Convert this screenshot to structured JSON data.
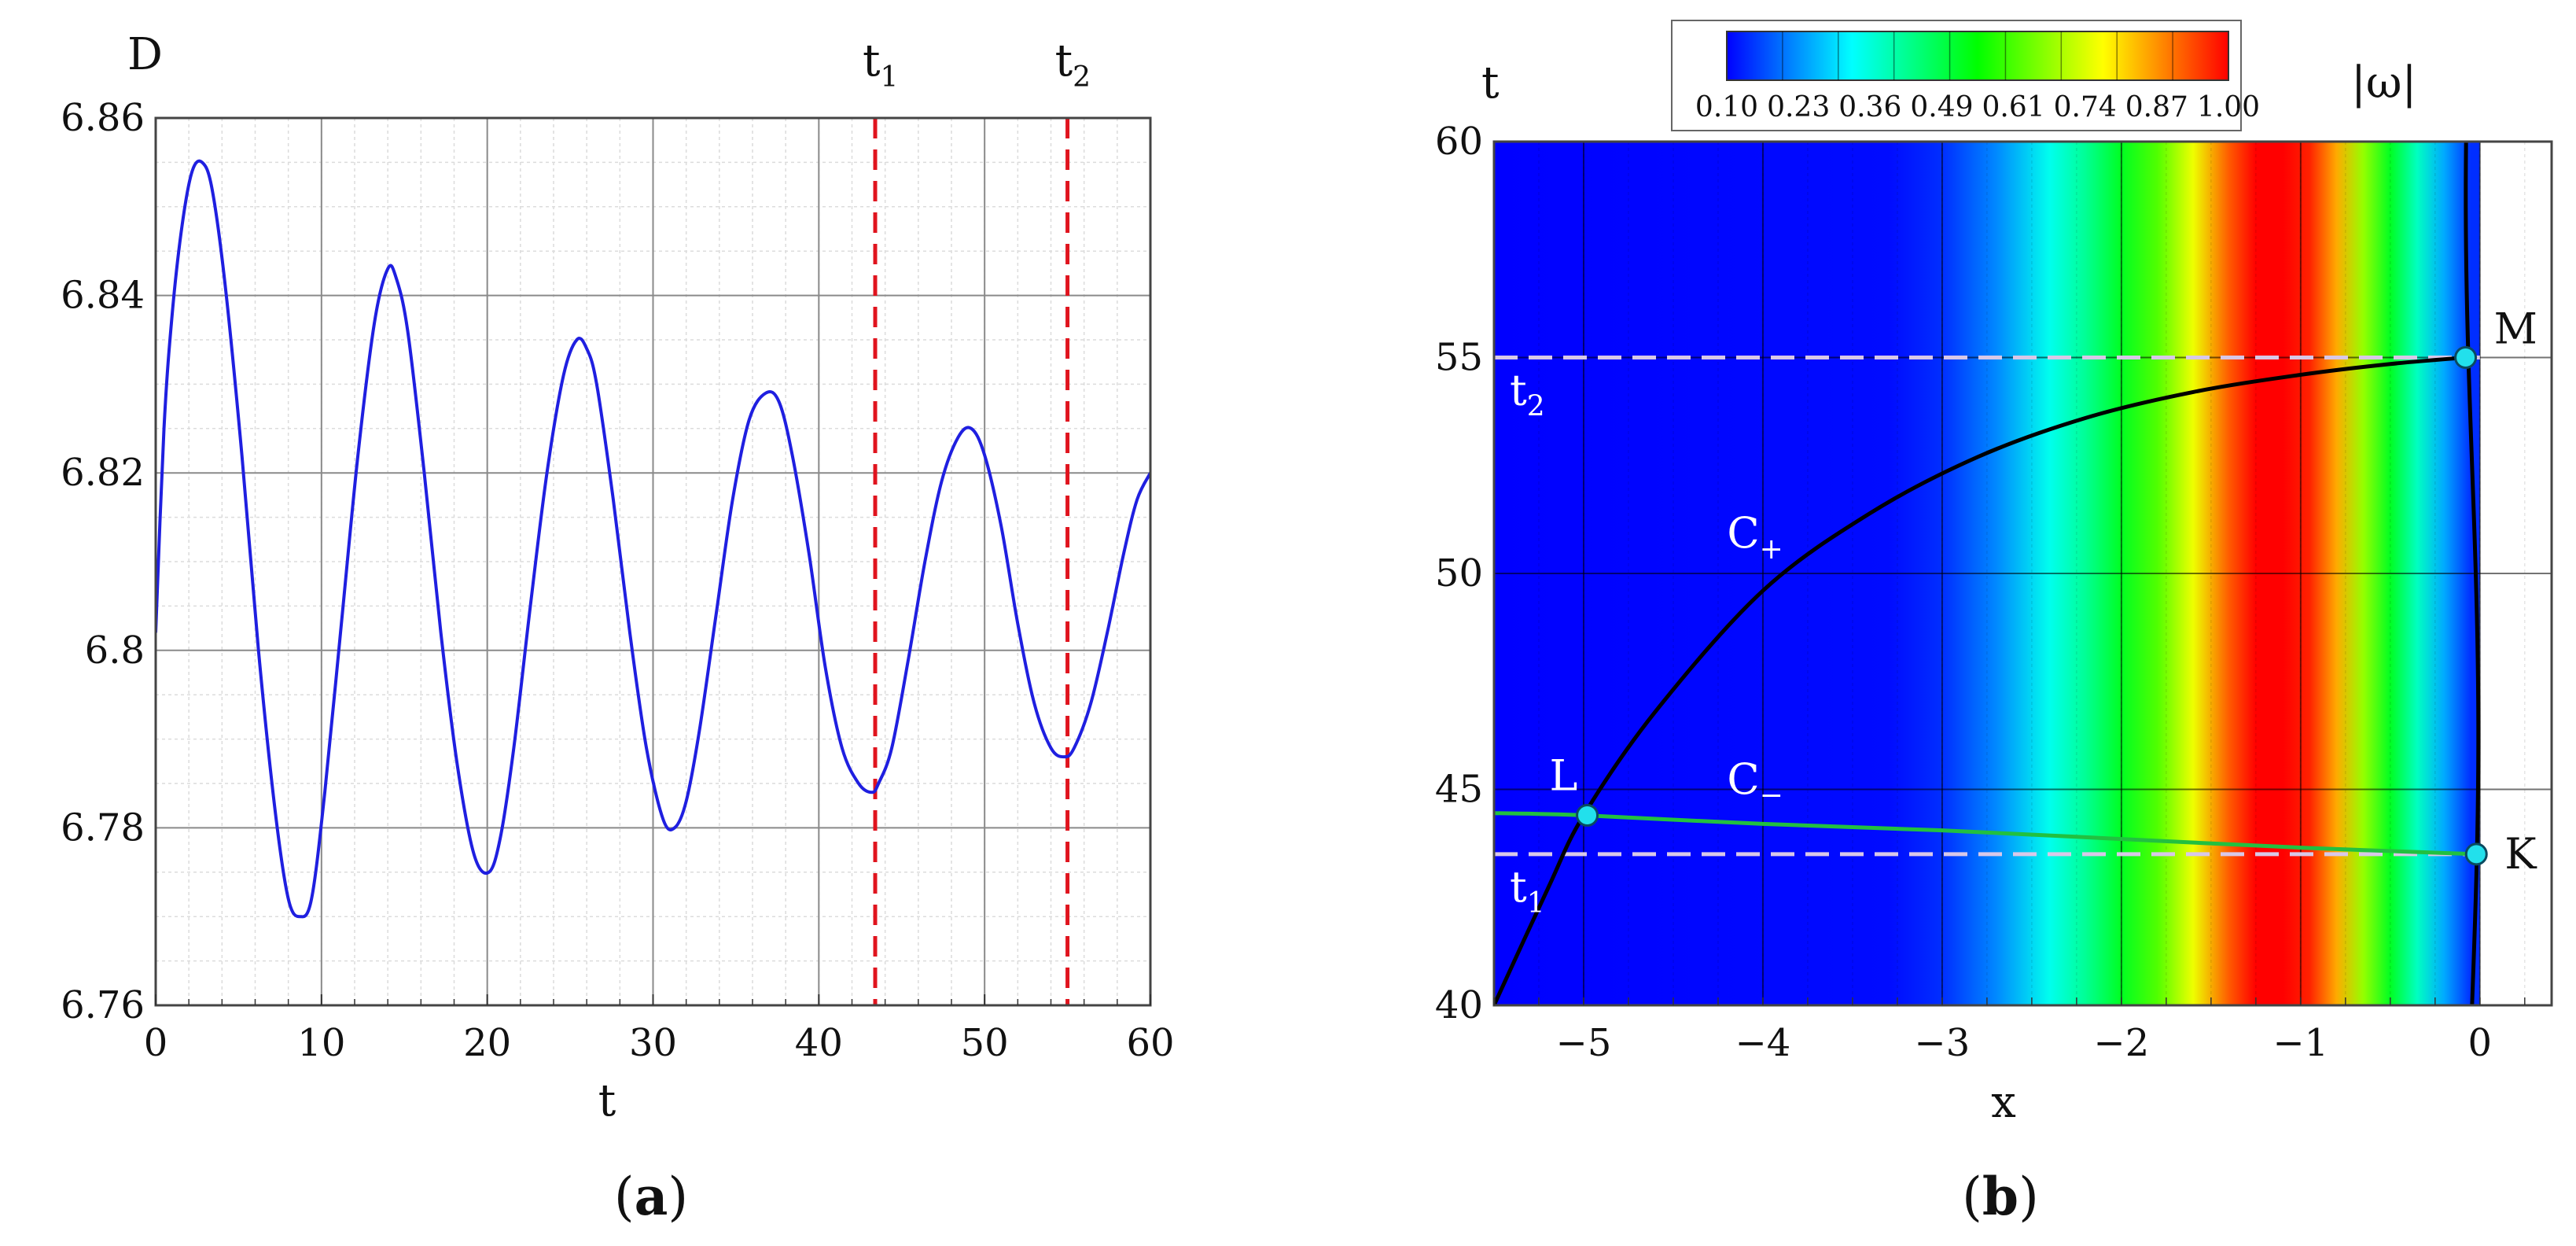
{
  "chart_data": [
    {
      "panel": "a",
      "type": "line",
      "caption": "(a)",
      "ylabel": "D",
      "xlabel": "t",
      "xlim": [
        0,
        60
      ],
      "ylim": [
        6.76,
        6.86
      ],
      "xticks": [
        0,
        10,
        20,
        30,
        40,
        50,
        60
      ],
      "xtick_labels": [
        "0",
        "10",
        "20",
        "30",
        "40",
        "50",
        "60"
      ],
      "yticks": [
        6.76,
        6.78,
        6.8,
        6.82,
        6.84,
        6.86
      ],
      "ytick_labels": [
        "6.76",
        "6.78",
        "6.8",
        "6.82",
        "6.84",
        "6.86"
      ],
      "grid": true,
      "series_color": "#1f1fe0",
      "series": [
        {
          "x": [
            0,
            0.5,
            1,
            1.6,
            2.2,
            2.8,
            3.4,
            4.2,
            5.2,
            6.2,
            7.2,
            8.0,
            8.7,
            9.4,
            10.2,
            11.2,
            12.2,
            13.2,
            14.0,
            14.5,
            15.2,
            16.2,
            17.2,
            18.2,
            19.2,
            20.1,
            20.8,
            21.6,
            22.6,
            23.6,
            24.6,
            25.4,
            26.0,
            26.6,
            27.6,
            28.6,
            29.6,
            30.6,
            31.3,
            32.0,
            32.8,
            33.8,
            34.8,
            35.8,
            36.8,
            37.6,
            38.4,
            39.4,
            40.4,
            41.4,
            42.4,
            43.2,
            43.6,
            44.4,
            45.4,
            46.4,
            47.4,
            48.4,
            49.2,
            50.0,
            51.0,
            52.0,
            53.0,
            54.0,
            54.8,
            55.4,
            56.4,
            57.4,
            58.4,
            59.2,
            60
          ],
          "y": [
            6.802,
            6.825,
            6.838,
            6.848,
            6.854,
            6.855,
            6.852,
            6.841,
            6.822,
            6.8,
            6.782,
            6.772,
            6.77,
            6.772,
            6.784,
            6.803,
            6.822,
            6.837,
            6.843,
            6.842,
            6.836,
            6.82,
            6.802,
            6.787,
            6.777,
            6.775,
            6.779,
            6.789,
            6.805,
            6.82,
            6.831,
            6.835,
            6.834,
            6.83,
            6.817,
            6.802,
            6.789,
            6.781,
            6.78,
            6.783,
            6.791,
            6.804,
            6.817,
            6.826,
            6.829,
            6.828,
            6.822,
            6.811,
            6.798,
            6.789,
            6.785,
            6.784,
            6.785,
            6.789,
            6.799,
            6.81,
            6.819,
            6.824,
            6.825,
            6.822,
            6.814,
            6.803,
            6.794,
            6.789,
            6.788,
            6.789,
            6.794,
            6.802,
            6.811,
            6.817,
            6.82
          ]
        }
      ],
      "markers": [
        {
          "label": "t",
          "sub": "1",
          "x": 43.4,
          "color": "#e0141e"
        },
        {
          "label": "t",
          "sub": "2",
          "x": 55.0,
          "color": "#e0141e"
        }
      ]
    },
    {
      "panel": "b",
      "type": "heatmap",
      "caption": "(b)",
      "ylabel": "t",
      "xlabel": "x",
      "xlim": [
        -5.5,
        0.4
      ],
      "ylim": [
        40,
        60
      ],
      "xticks": [
        -5,
        -4,
        -3,
        -2,
        -1,
        0
      ],
      "xtick_labels": [
        "−5",
        "−4",
        "−3",
        "−2",
        "−1",
        "0"
      ],
      "yticks": [
        40,
        45,
        50,
        55,
        60
      ],
      "ytick_labels": [
        "40",
        "45",
        "50",
        "55",
        "60"
      ],
      "grid": true,
      "colorbar": {
        "title": "|ω|",
        "min": 0.1,
        "max": 1.0,
        "tick_labels": [
          "0.10",
          "0.23",
          "0.36",
          "0.49",
          "0.61",
          "0.74",
          "0.87",
          "1.00"
        ],
        "colors": [
          "#0000ff",
          "#0080ff",
          "#00ffff",
          "#00ff80",
          "#00ff00",
          "#80ff00",
          "#ffff00",
          "#ff8000",
          "#ff0000"
        ]
      },
      "field_profile": {
        "x": [
          -5.5,
          -3.3,
          -3.0,
          -2.7,
          -2.4,
          -2.2,
          -2.0,
          -1.8,
          -1.6,
          -1.4,
          -1.25,
          -1.1,
          -0.95,
          -0.8,
          -0.65,
          -0.5,
          -0.35,
          -0.2,
          -0.05
        ],
        "omega": [
          0.1,
          0.11,
          0.14,
          0.22,
          0.34,
          0.42,
          0.52,
          0.62,
          0.76,
          0.92,
          1.0,
          1.0,
          0.97,
          0.85,
          0.68,
          0.52,
          0.38,
          0.25,
          0.14
        ]
      },
      "boundary_x": 0.0,
      "horizontal_markers": [
        {
          "label": "t",
          "sub": "1",
          "t": 43.5
        },
        {
          "label": "t",
          "sub": "2",
          "t": 55.0
        }
      ],
      "characteristics": [
        {
          "label": "C",
          "sub": "+",
          "color": "#000000",
          "x": [
            -5.5,
            -5.2,
            -5.0,
            -4.6,
            -4.0,
            -3.4,
            -2.8,
            -2.2,
            -1.6,
            -1.0,
            -0.5,
            -0.08
          ],
          "t": [
            40.0,
            42.7,
            44.4,
            46.8,
            49.6,
            51.4,
            52.7,
            53.6,
            54.2,
            54.6,
            54.85,
            55.0
          ]
        },
        {
          "label": "C",
          "sub": "−",
          "color": "#22c040",
          "x": [
            -5.5,
            -5.0,
            -4.0,
            -3.0,
            -2.0,
            -1.0,
            -0.02
          ],
          "t": [
            44.45,
            44.4,
            44.2,
            44.05,
            43.85,
            43.65,
            43.5
          ]
        }
      ],
      "points": [
        {
          "label": "L",
          "x": -4.98,
          "t": 44.4
        },
        {
          "label": "M",
          "x": -0.08,
          "t": 55.0
        },
        {
          "label": "K",
          "x": -0.02,
          "t": 43.5
        }
      ]
    }
  ]
}
